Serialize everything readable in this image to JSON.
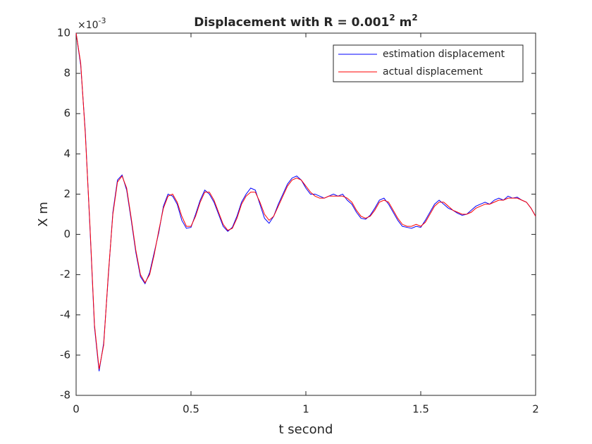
{
  "chart_data": {
    "type": "line",
    "title": {
      "text": "Displacement with R = 0.001",
      "sup1": "2",
      "unit": " m",
      "sup2": "2"
    },
    "x_label": "t second",
    "y_label": "X m",
    "y_multiplier": {
      "base": "×10",
      "exponent": "-3"
    },
    "xlim": [
      0,
      2
    ],
    "ylim": [
      -8,
      10
    ],
    "xticks": [
      0,
      0.5,
      1,
      1.5,
      2
    ],
    "yticks": [
      -8,
      -6,
      -4,
      -2,
      0,
      2,
      4,
      6,
      8,
      10
    ],
    "legend": "upper right",
    "x": [
      0,
      0.02,
      0.04,
      0.06,
      0.08,
      0.1,
      0.12,
      0.14,
      0.16,
      0.18,
      0.2,
      0.22,
      0.24,
      0.26,
      0.28,
      0.3,
      0.32,
      0.34,
      0.36,
      0.38,
      0.4,
      0.42,
      0.44,
      0.46,
      0.48,
      0.5,
      0.52,
      0.54,
      0.56,
      0.58,
      0.6,
      0.62,
      0.64,
      0.66,
      0.68,
      0.7,
      0.72,
      0.74,
      0.76,
      0.78,
      0.8,
      0.82,
      0.84,
      0.86,
      0.88,
      0.9,
      0.92,
      0.94,
      0.96,
      0.98,
      1,
      1.02,
      1.04,
      1.06,
      1.08,
      1.1,
      1.12,
      1.14,
      1.16,
      1.18,
      1.2,
      1.22,
      1.24,
      1.26,
      1.28,
      1.3,
      1.32,
      1.34,
      1.36,
      1.38,
      1.4,
      1.42,
      1.44,
      1.46,
      1.48,
      1.5,
      1.52,
      1.54,
      1.56,
      1.58,
      1.6,
      1.62,
      1.64,
      1.66,
      1.68,
      1.7,
      1.72,
      1.74,
      1.76,
      1.78,
      1.8,
      1.82,
      1.84,
      1.86,
      1.88,
      1.9,
      1.92,
      1.94,
      1.96,
      1.98,
      2
    ],
    "series": [
      {
        "name": "estimation displacement",
        "color": "#0000ff",
        "values": [
          10,
          8.4,
          5.1,
          0.4,
          -4.6,
          -6.8,
          -5.4,
          -2.1,
          1.1,
          2.7,
          2.95,
          2.2,
          0.7,
          -0.9,
          -2.1,
          -2.45,
          -1.9,
          -0.9,
          0.1,
          1.4,
          2.0,
          1.9,
          1.5,
          0.7,
          0.3,
          0.35,
          1.0,
          1.7,
          2.2,
          2.0,
          1.6,
          1.0,
          0.4,
          0.15,
          0.35,
          0.9,
          1.6,
          2.0,
          2.3,
          2.2,
          1.5,
          0.8,
          0.55,
          0.9,
          1.5,
          2.0,
          2.5,
          2.8,
          2.9,
          2.7,
          2.3,
          2.0,
          2.0,
          1.9,
          1.8,
          1.9,
          2.0,
          1.9,
          2.0,
          1.7,
          1.5,
          1.1,
          0.8,
          0.75,
          0.95,
          1.3,
          1.7,
          1.8,
          1.5,
          1.1,
          0.7,
          0.4,
          0.35,
          0.3,
          0.4,
          0.35,
          0.7,
          1.1,
          1.5,
          1.7,
          1.5,
          1.3,
          1.2,
          1.05,
          0.95,
          1.0,
          1.2,
          1.4,
          1.5,
          1.6,
          1.5,
          1.7,
          1.8,
          1.7,
          1.9,
          1.8,
          1.85,
          1.7,
          1.6,
          1.3,
          0.9
        ]
      },
      {
        "name": "actual displacement",
        "color": "#ff0000",
        "values": [
          10,
          8.5,
          5,
          0.5,
          -4.5,
          -6.7,
          -5.5,
          -2,
          1,
          2.6,
          2.9,
          2.3,
          0.8,
          -0.8,
          -2,
          -2.4,
          -2,
          -1,
          0.2,
          1.3,
          1.9,
          2,
          1.6,
          0.9,
          0.4,
          0.4,
          0.9,
          1.6,
          2.1,
          2.1,
          1.7,
          1.1,
          0.5,
          0.2,
          0.3,
          0.8,
          1.5,
          1.9,
          2.1,
          2.1,
          1.6,
          1,
          0.7,
          0.9,
          1.4,
          1.9,
          2.4,
          2.7,
          2.8,
          2.7,
          2.4,
          2.1,
          1.9,
          1.8,
          1.8,
          1.9,
          1.9,
          1.9,
          1.9,
          1.8,
          1.6,
          1.2,
          0.9,
          0.8,
          0.9,
          1.2,
          1.6,
          1.7,
          1.6,
          1.2,
          0.8,
          0.5,
          0.4,
          0.4,
          0.5,
          0.4,
          0.6,
          1,
          1.4,
          1.6,
          1.6,
          1.4,
          1.2,
          1.1,
          1,
          1,
          1.1,
          1.3,
          1.4,
          1.5,
          1.5,
          1.6,
          1.7,
          1.7,
          1.8,
          1.8,
          1.8,
          1.7,
          1.6,
          1.3,
          0.9
        ]
      }
    ]
  }
}
